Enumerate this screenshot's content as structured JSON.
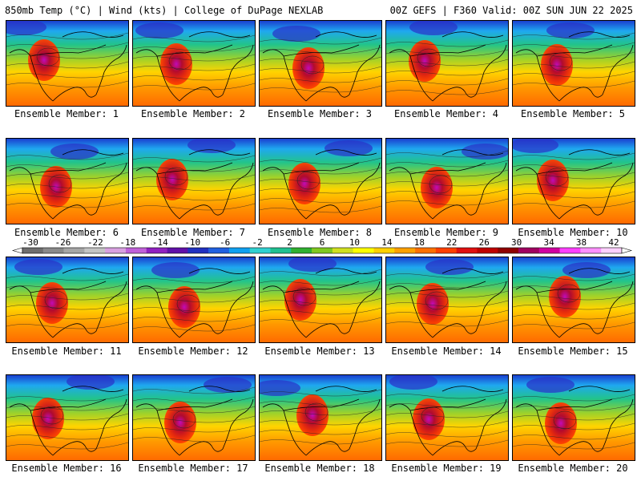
{
  "header": {
    "left": "850mb Temp (°C) | Wind (kts) | College of DuPage NEXLAB",
    "right": "00Z GEFS | F360 Valid: 00Z SUN JUN 22 2025"
  },
  "members": [
    "Ensemble Member: 1",
    "Ensemble Member: 2",
    "Ensemble Member: 3",
    "Ensemble Member: 4",
    "Ensemble Member: 5",
    "Ensemble Member: 6",
    "Ensemble Member: 7",
    "Ensemble Member: 8",
    "Ensemble Member: 9",
    "Ensemble Member: 10",
    "Ensemble Member: 11",
    "Ensemble Member: 12",
    "Ensemble Member: 13",
    "Ensemble Member: 14",
    "Ensemble Member: 15",
    "Ensemble Member: 16",
    "Ensemble Member: 17",
    "Ensemble Member: 18",
    "Ensemble Member: 19",
    "Ensemble Member: 20"
  ],
  "colorbar": {
    "labels": [
      "-30",
      "-26",
      "-22",
      "-18",
      "-14",
      "-10",
      "-6",
      "-2",
      "2",
      "6",
      "10",
      "14",
      "18",
      "22",
      "26",
      "30",
      "34",
      "38",
      "42"
    ],
    "colors": [
      "#6e6e6e",
      "#8a8a8a",
      "#a6a6a6",
      "#c4c4c4",
      "#d8a0e0",
      "#c060d8",
      "#9020c0",
      "#6010a8",
      "#2030c0",
      "#2060e0",
      "#10a0f0",
      "#30d0d0",
      "#20c090",
      "#30b030",
      "#80c820",
      "#d0e020",
      "#ffff00",
      "#ffd000",
      "#ffa000",
      "#ff7000",
      "#ff4000",
      "#e01010",
      "#c00000",
      "#900000",
      "#a00060",
      "#d000a0",
      "#ff40ff",
      "#ff90ff",
      "#ffd0ff"
    ]
  }
}
